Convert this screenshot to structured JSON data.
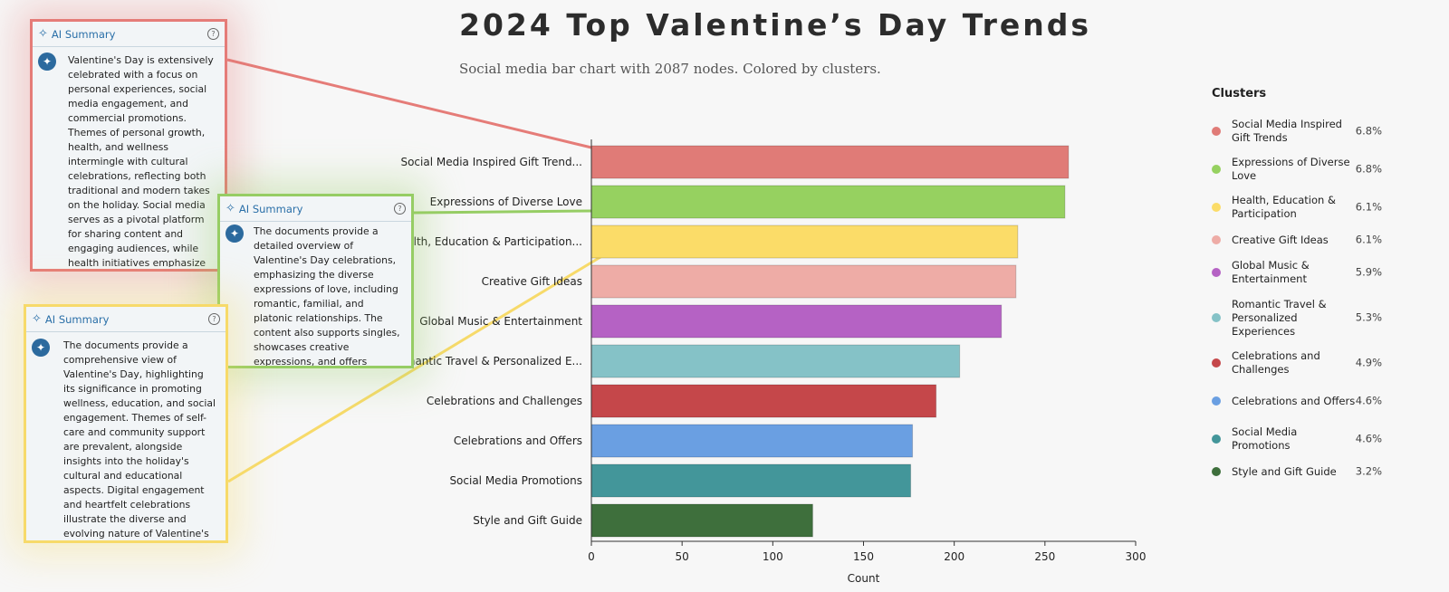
{
  "title": "2024 Top Valentine’s Day Trends",
  "subtitle": "Social media bar chart with 2087 nodes. Colored by clusters.",
  "chart_data": {
    "type": "bar",
    "orientation": "horizontal",
    "categories": [
      "Social Media Inspired Gift Trend...",
      "Expressions of Diverse Love",
      "Health, Education & Participation...",
      "Creative Gift Ideas",
      "Global Music & Entertainment",
      "Romantic Travel & Personalized E...",
      "Celebrations and Challenges",
      "Celebrations and Offers",
      "Social Media Promotions",
      "Style and Gift Guide"
    ],
    "values": [
      263,
      261,
      235,
      234,
      226,
      203,
      190,
      177,
      176,
      122
    ],
    "colors": [
      "#e07b77",
      "#96d160",
      "#fbdc68",
      "#eeaca6",
      "#b562c4",
      "#85c2c7",
      "#c5474a",
      "#6a9fe2",
      "#43969a",
      "#3e6f3c"
    ],
    "xlabel": "Count",
    "xlim": [
      0,
      300
    ],
    "xticks": [
      0,
      50,
      100,
      150,
      200,
      250,
      300
    ],
    "grid": false
  },
  "legend": {
    "title": "Clusters",
    "items": [
      {
        "name": "Social Media Inspired Gift Trends",
        "pct": "6.8%",
        "color": "#e07b77"
      },
      {
        "name": "Expressions of Diverse Love",
        "pct": "6.8%",
        "color": "#96d160"
      },
      {
        "name": "Health, Education & Participation",
        "pct": "6.1%",
        "color": "#fbdc68"
      },
      {
        "name": "Creative Gift Ideas",
        "pct": "6.1%",
        "color": "#eeaca6"
      },
      {
        "name": "Global Music & Entertainment",
        "pct": "5.9%",
        "color": "#b562c4"
      },
      {
        "name": "Romantic Travel & Personalized Experiences",
        "pct": "5.3%",
        "color": "#85c2c7"
      },
      {
        "name": "Celebrations and Challenges",
        "pct": "4.9%",
        "color": "#c5474a"
      },
      {
        "name": "Celebrations and Offers",
        "pct": "4.6%",
        "color": "#6a9fe2"
      },
      {
        "name": "Social Media Promotions",
        "pct": "4.6%",
        "color": "#43969a"
      },
      {
        "name": "Style and Gift Guide",
        "pct": "3.2%",
        "color": "#3e6f3c"
      }
    ]
  },
  "summaries": [
    {
      "header": "AI Summary",
      "help": "?",
      "border_color": "#e57c78",
      "text": "Valentine's Day is extensively celebrated with a focus on personal experiences, social media engagement, and commercial promotions. Themes of personal growth, health, and wellness intermingle with cultural celebrations, reflecting both traditional and modern takes on the holiday. Social media serves as a pivotal platform for sharing content and engaging audiences, while health initiatives emphasize the importance of self-care and heart health. Here's a breakdown:"
    },
    {
      "header": "AI Summary",
      "help": "?",
      "border_color": "#96cd64",
      "text": "The documents provide a detailed overview of Valentine's Day celebrations, emphasizing the diverse expressions of love, including romantic, familial, and platonic relationships. The content also supports singles, showcases creative expressions, and offers cultural reflections on the holiday's significance. Here's a breakdown:"
    },
    {
      "header": "AI Summary",
      "help": "?",
      "border_color": "#f7da6a",
      "text": "The documents provide a comprehensive view of Valentine's Day, highlighting its significance in promoting wellness, education, and social engagement. Themes of self-care and community support are prevalent, alongside insights into the holiday's cultural and educational aspects. Digital engagement and heartfelt celebrations illustrate the diverse and evolving nature of Valentine's Day observances. Here's a breakdown:"
    }
  ]
}
